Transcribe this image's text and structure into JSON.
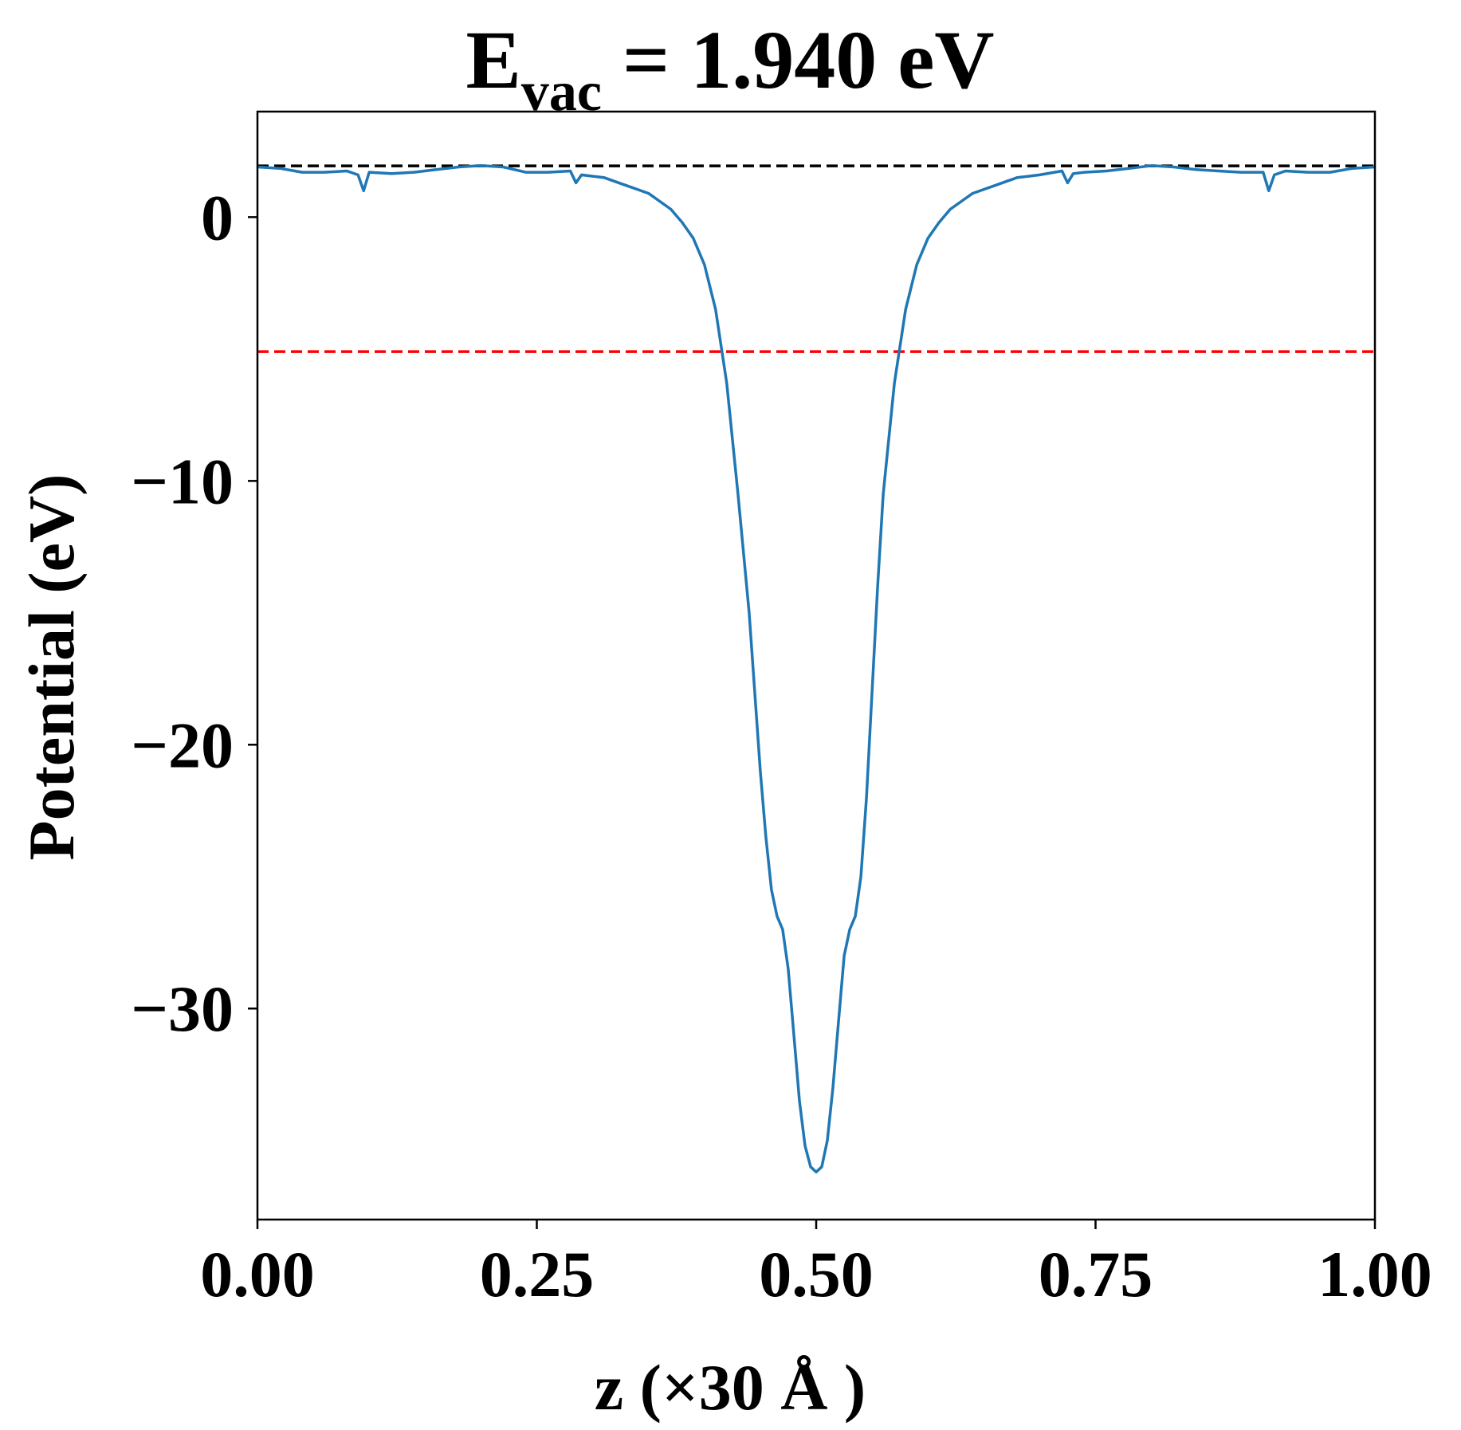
{
  "chart_data": {
    "type": "line",
    "title": {
      "main": "E",
      "sub": "vac",
      "rest": " = 1.940 eV"
    },
    "xlabel": "z (×30 Å )",
    "ylabel": "Potential (eV)",
    "xlim": [
      0.0,
      1.0
    ],
    "ylim": [
      -38.0,
      4.0
    ],
    "xticks": [
      0.0,
      0.25,
      0.5,
      0.75,
      1.0
    ],
    "xtick_labels": [
      "0.00",
      "0.25",
      "0.50",
      "0.75",
      "1.00"
    ],
    "yticks": [
      0,
      -10,
      -20,
      -30
    ],
    "ytick_labels": [
      "0",
      "−10",
      "−20",
      "−30"
    ],
    "grid": false,
    "legend": "none",
    "reference_lines": [
      {
        "y": 1.94,
        "color": "#000000",
        "style": "dashed"
      },
      {
        "y": -5.1,
        "color": "#ff0000",
        "style": "dashed"
      }
    ],
    "series": [
      {
        "color": "#1f77b4",
        "x": [
          0.0,
          0.02,
          0.04,
          0.06,
          0.08,
          0.09,
          0.095,
          0.1,
          0.12,
          0.14,
          0.16,
          0.18,
          0.2,
          0.22,
          0.24,
          0.26,
          0.28,
          0.285,
          0.29,
          0.3,
          0.31,
          0.32,
          0.33,
          0.34,
          0.35,
          0.36,
          0.37,
          0.38,
          0.39,
          0.4,
          0.41,
          0.42,
          0.43,
          0.44,
          0.445,
          0.45,
          0.455,
          0.46,
          0.465,
          0.47,
          0.475,
          0.48,
          0.485,
          0.49,
          0.495,
          0.5,
          0.505,
          0.51,
          0.515,
          0.52,
          0.525,
          0.53,
          0.535,
          0.54,
          0.545,
          0.55,
          0.555,
          0.56,
          0.57,
          0.58,
          0.59,
          0.6,
          0.61,
          0.62,
          0.63,
          0.64,
          0.65,
          0.66,
          0.67,
          0.68,
          0.69,
          0.7,
          0.72,
          0.725,
          0.73,
          0.74,
          0.76,
          0.78,
          0.8,
          0.82,
          0.84,
          0.86,
          0.88,
          0.9,
          0.905,
          0.91,
          0.92,
          0.94,
          0.96,
          0.98,
          1.0
        ],
        "y": [
          1.9,
          1.85,
          1.7,
          1.7,
          1.75,
          1.6,
          1.0,
          1.7,
          1.65,
          1.7,
          1.8,
          1.9,
          1.95,
          1.9,
          1.7,
          1.7,
          1.75,
          1.3,
          1.6,
          1.55,
          1.5,
          1.35,
          1.2,
          1.05,
          0.9,
          0.6,
          0.3,
          -0.2,
          -0.8,
          -1.8,
          -3.5,
          -6.3,
          -10.5,
          -15.0,
          -18.0,
          -21.0,
          -23.5,
          -25.5,
          -26.5,
          -27.0,
          -28.5,
          -31.0,
          -33.5,
          -35.2,
          -36.0,
          -36.2,
          -36.0,
          -35.0,
          -33.0,
          -30.5,
          -28.0,
          -27.0,
          -26.5,
          -25.0,
          -22.0,
          -18.0,
          -14.0,
          -10.5,
          -6.3,
          -3.5,
          -1.8,
          -0.8,
          -0.2,
          0.3,
          0.6,
          0.9,
          1.05,
          1.2,
          1.35,
          1.5,
          1.55,
          1.6,
          1.75,
          1.3,
          1.65,
          1.7,
          1.75,
          1.85,
          1.95,
          1.9,
          1.8,
          1.75,
          1.7,
          1.7,
          1.0,
          1.6,
          1.75,
          1.7,
          1.7,
          1.85,
          1.9
        ]
      }
    ]
  }
}
